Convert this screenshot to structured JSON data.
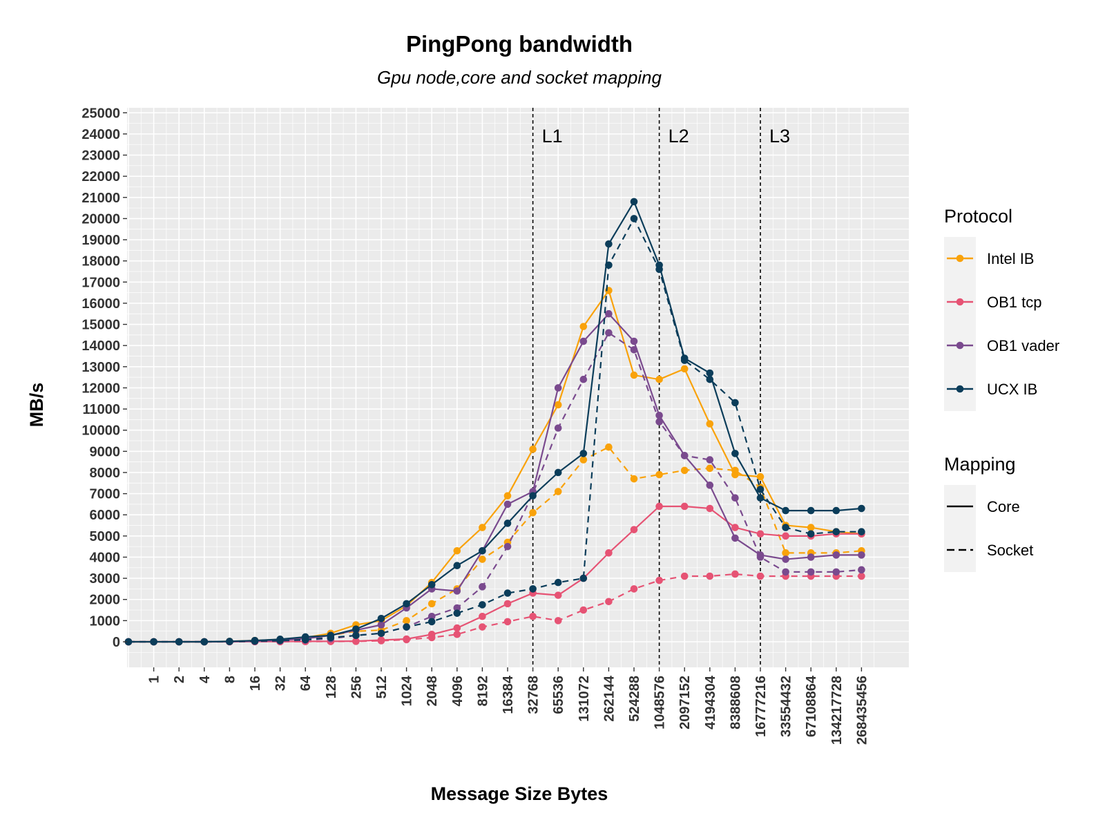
{
  "chart_data": {
    "type": "line",
    "title": "PingPong bandwidth",
    "subtitle": "Gpu node,core and socket mapping",
    "xlabel": "Message Size Bytes",
    "ylabel": "MB/s",
    "x_scale": "categorical",
    "categories": [
      "0",
      "1",
      "2",
      "4",
      "8",
      "16",
      "32",
      "64",
      "128",
      "256",
      "512",
      "1024",
      "2048",
      "4096",
      "8192",
      "16384",
      "32768",
      "65536",
      "131072",
      "262144",
      "524288",
      "1048576",
      "2097152",
      "4194304",
      "8388608",
      "16777216",
      "33554432",
      "67108864",
      "134217728",
      "268435456"
    ],
    "x_tick_labels": [
      "1",
      "2",
      "4",
      "8",
      "16",
      "32",
      "64",
      "128",
      "256",
      "512",
      "1024",
      "2048",
      "4096",
      "8192",
      "16384",
      "32768",
      "65536",
      "131072",
      "262144",
      "524288",
      "1048576",
      "2097152",
      "4194304",
      "8388608",
      "16777216",
      "33554432",
      "67108864",
      "134217728",
      "268435456"
    ],
    "ylim": [
      -1200,
      25000
    ],
    "y_ticks": [
      0,
      1000,
      2000,
      3000,
      4000,
      5000,
      6000,
      7000,
      8000,
      9000,
      10000,
      11000,
      12000,
      13000,
      14000,
      15000,
      16000,
      17000,
      18000,
      19000,
      20000,
      21000,
      22000,
      23000,
      24000,
      25000
    ],
    "grid": true,
    "vlines": [
      {
        "label": "L1",
        "category": "32768"
      },
      {
        "label": "L2",
        "category": "1048576"
      },
      {
        "label": "L3",
        "category": "16777216"
      }
    ],
    "legend": {
      "position": "right",
      "protocol_title": "Protocol",
      "mapping_title": "Mapping",
      "protocols": [
        {
          "name": "Intel IB",
          "color": "#F9A20A"
        },
        {
          "name": "OB1 tcp",
          "color": "#E65374"
        },
        {
          "name": "OB1 vader",
          "color": "#7A4A8E"
        },
        {
          "name": "UCX IB",
          "color": "#0B3D5A"
        }
      ],
      "mappings": [
        {
          "name": "Core",
          "dash": "solid"
        },
        {
          "name": "Socket",
          "dash": "dashed"
        }
      ]
    },
    "series": [
      {
        "protocol": "Intel IB",
        "mapping": "Core",
        "values": [
          0,
          0,
          0,
          0,
          20,
          60,
          110,
          200,
          400,
          800,
          1000,
          1700,
          2800,
          4300,
          5400,
          6900,
          9100,
          11200,
          14900,
          16600,
          12600,
          12400,
          12900,
          10300,
          7900,
          7800,
          5500,
          5400,
          5200,
          5100
        ]
      },
      {
        "protocol": "Intel IB",
        "mapping": "Socket",
        "values": [
          0,
          0,
          0,
          0,
          10,
          40,
          80,
          150,
          300,
          500,
          550,
          1000,
          1800,
          2500,
          3900,
          4700,
          6100,
          7100,
          8600,
          9200,
          7700,
          7900,
          8100,
          8200,
          8100,
          7300,
          4200,
          4200,
          4200,
          4300
        ]
      },
      {
        "protocol": "OB1 tcp",
        "mapping": "Core",
        "values": [
          0,
          0,
          0,
          0,
          0,
          10,
          10,
          20,
          20,
          30,
          80,
          130,
          350,
          650,
          1200,
          1800,
          2300,
          2200,
          3000,
          4200,
          5300,
          6400,
          6400,
          6300,
          5400,
          5100,
          5000,
          5000,
          5100,
          5100
        ]
      },
      {
        "protocol": "OB1 tcp",
        "mapping": "Socket",
        "values": [
          0,
          0,
          0,
          0,
          0,
          5,
          5,
          10,
          15,
          20,
          50,
          100,
          200,
          350,
          700,
          950,
          1200,
          1000,
          1500,
          1900,
          2500,
          2900,
          3100,
          3100,
          3200,
          3100,
          3100,
          3100,
          3100,
          3100
        ]
      },
      {
        "protocol": "OB1 vader",
        "mapping": "Core",
        "values": [
          0,
          0,
          0,
          0,
          10,
          30,
          70,
          150,
          300,
          550,
          800,
          1600,
          2500,
          2400,
          4300,
          6500,
          7100,
          12000,
          14200,
          15500,
          14200,
          10700,
          8800,
          7400,
          4900,
          4100,
          3900,
          4000,
          4100,
          4100
        ]
      },
      {
        "protocol": "OB1 vader",
        "mapping": "Socket",
        "values": [
          0,
          0,
          0,
          0,
          10,
          20,
          40,
          80,
          150,
          300,
          400,
          700,
          1200,
          1600,
          2600,
          4500,
          7000,
          10100,
          12400,
          14600,
          13800,
          10400,
          8800,
          8600,
          6800,
          4000,
          3300,
          3300,
          3300,
          3400
        ]
      },
      {
        "protocol": "UCX IB",
        "mapping": "Core",
        "values": [
          0,
          0,
          0,
          0,
          20,
          60,
          120,
          230,
          300,
          600,
          1100,
          1800,
          2700,
          3600,
          4300,
          5600,
          6900,
          8000,
          8900,
          18800,
          20800,
          17800,
          13400,
          12700,
          8900,
          6800,
          6200,
          6200,
          6200,
          6300
        ]
      },
      {
        "protocol": "UCX IB",
        "mapping": "Socket",
        "values": [
          0,
          0,
          0,
          0,
          10,
          30,
          60,
          100,
          200,
          300,
          400,
          700,
          950,
          1350,
          1750,
          2300,
          2500,
          2800,
          3000,
          17800,
          20000,
          17600,
          13300,
          12400,
          11300,
          7200,
          5400,
          5100,
          5200,
          5200
        ]
      }
    ]
  }
}
